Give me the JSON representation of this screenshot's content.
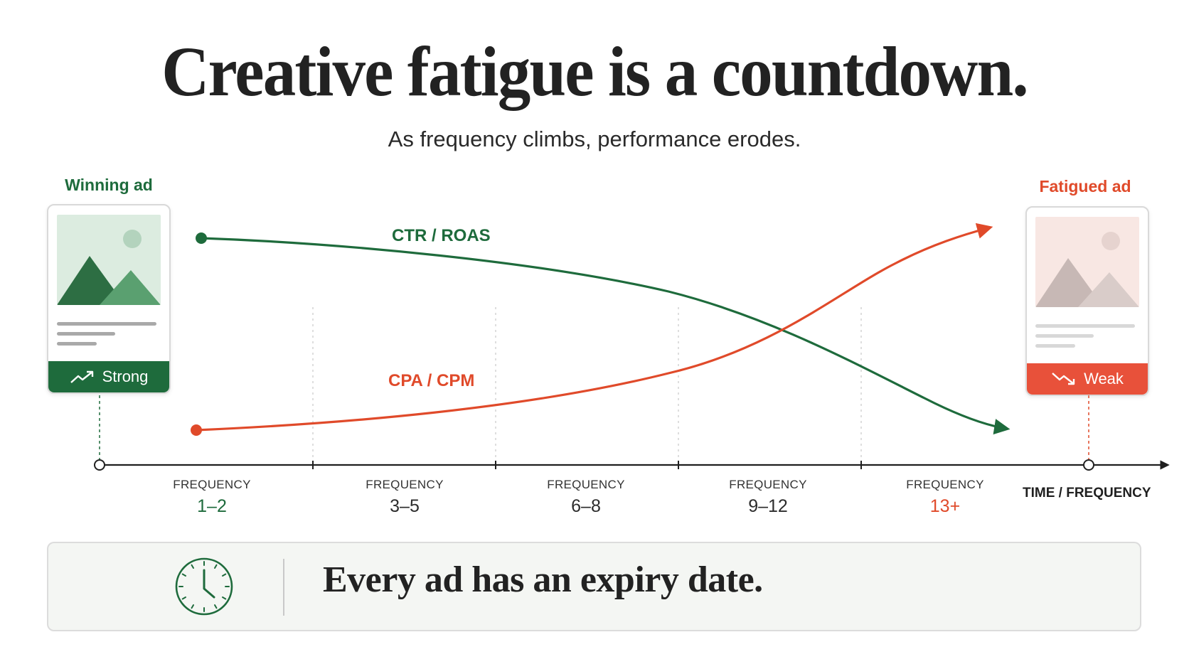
{
  "title": "Creative fatigue is a countdown.",
  "subtitle": "As frequency climbs, performance erodes.",
  "cards": {
    "winning": {
      "label": "Winning ad",
      "badge": "Strong",
      "badge_icon": "trend-up-icon",
      "color": "#1e6b3c"
    },
    "fatigued": {
      "label": "Fatigued ad",
      "badge": "Weak",
      "badge_icon": "trend-down-icon",
      "color": "#e8513a"
    }
  },
  "series": {
    "ctr_roas": {
      "label": "CTR / ROAS",
      "color": "#1e6b3c",
      "direction": "down"
    },
    "cpa_cpm": {
      "label": "CPA / CPM",
      "color": "#e04a2a",
      "direction": "up"
    }
  },
  "axis": {
    "title": "TIME / FREQUENCY",
    "stages": [
      {
        "label": "FREQUENCY",
        "range": "1–2"
      },
      {
        "label": "FREQUENCY",
        "range": "3–5"
      },
      {
        "label": "FREQUENCY",
        "range": "6–8"
      },
      {
        "label": "FREQUENCY",
        "range": "9–12"
      },
      {
        "label": "FREQUENCY",
        "range": "13+"
      }
    ]
  },
  "footer": {
    "text": "Every ad has an expiry  date.",
    "icon": "clock-icon"
  }
}
